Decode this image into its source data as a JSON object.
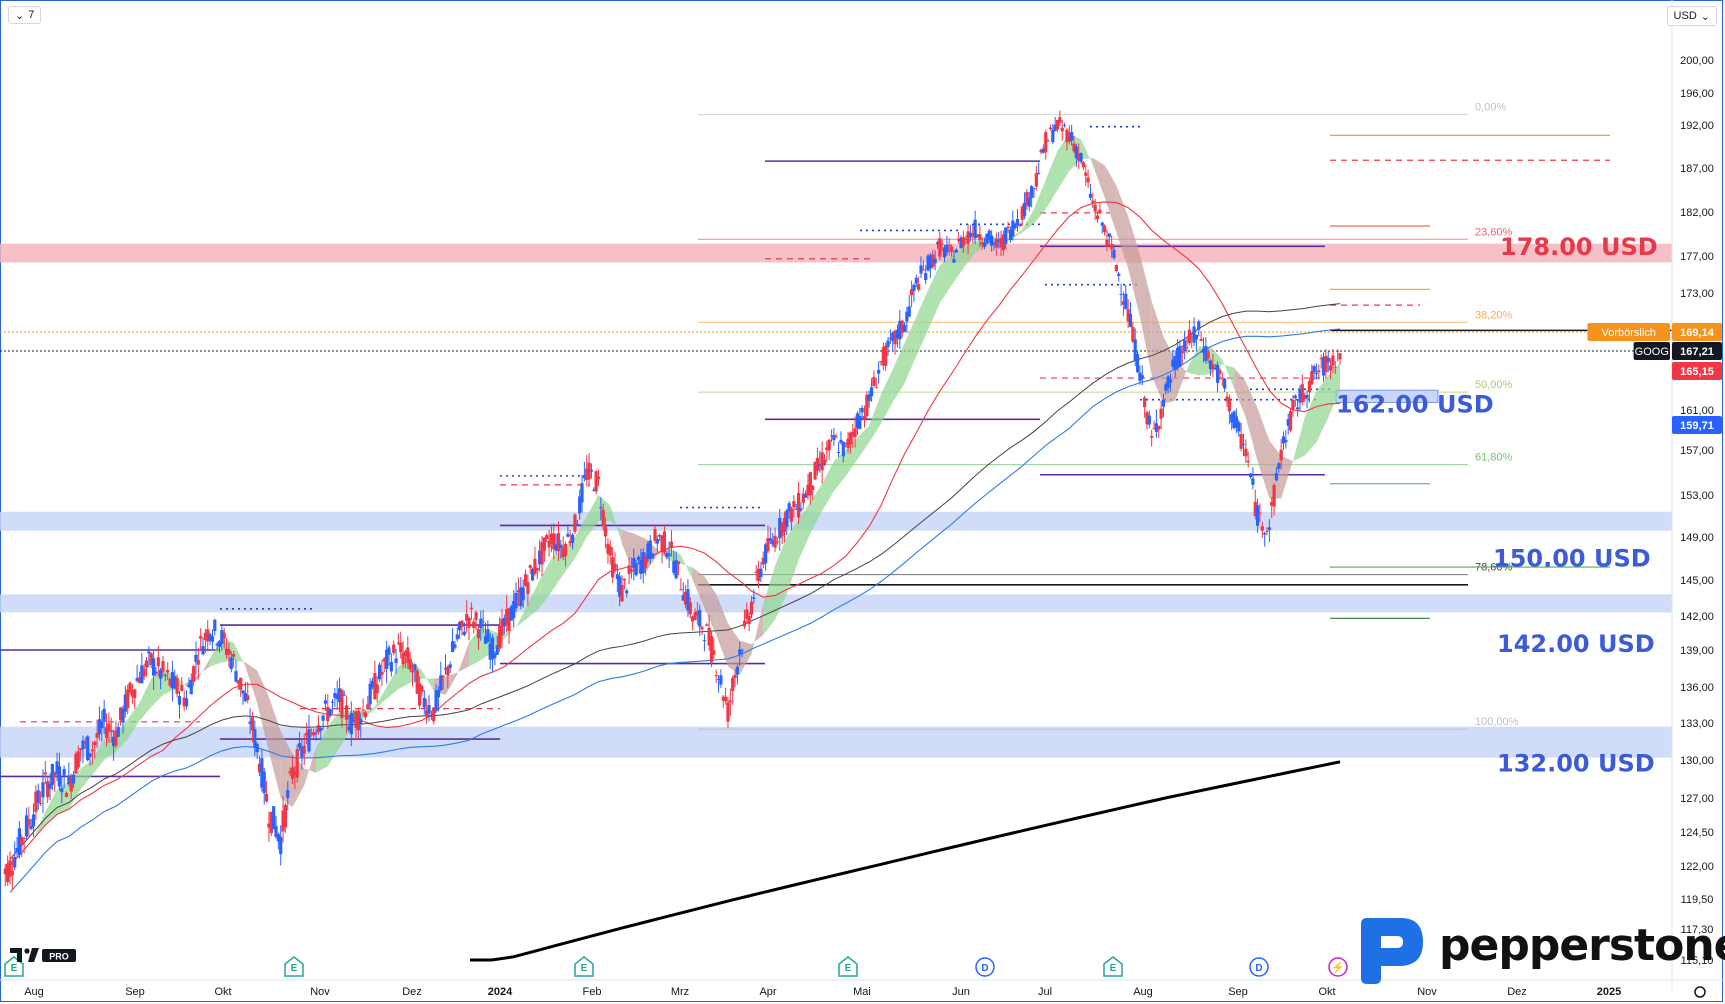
{
  "toolbar": {
    "interval": "7",
    "currency": "USD"
  },
  "brand": {
    "name": "pepperstone",
    "tv_badge": "PRO"
  },
  "price_axis": {
    "ticks": [
      "200,00",
      "196,00",
      "192,00",
      "187,00",
      "182,00",
      "177,00",
      "173,00",
      "169,14",
      "167,21",
      "165,15",
      "161,00",
      "159,71",
      "157,00",
      "153,00",
      "149,00",
      "145,00",
      "142,00",
      "139,00",
      "136,00",
      "133,00",
      "130,00",
      "127,00",
      "124,50",
      "122,00",
      "119,50",
      "117,30",
      "115,10"
    ]
  },
  "time_axis": {
    "labels": [
      "Aug",
      "Sep",
      "Okt",
      "Nov",
      "Dez",
      "2024",
      "Feb",
      "Mrz",
      "Apr",
      "Mai",
      "Jun",
      "Jul",
      "Aug",
      "Sep",
      "Okt",
      "Nov",
      "Dez",
      "2025"
    ]
  },
  "event_markers": [
    "E",
    "E",
    "E",
    "E",
    "D",
    "E",
    "D"
  ],
  "chart_data": {
    "type": "candlestick",
    "symbol": "GOOG",
    "last_price": 167.21,
    "price_labels": [
      {
        "label": "Vorbörslich",
        "value": 169.14,
        "color": "#f7931a"
      },
      {
        "label": "GOOG",
        "value": 167.21,
        "color": "#131722"
      },
      {
        "label": "",
        "value": 165.15,
        "color": "#f23645"
      },
      {
        "label": "",
        "value": 159.71,
        "color": "#2962ff"
      }
    ],
    "fibonacci": [
      {
        "level": "0,00%",
        "price": 193.3
      },
      {
        "level": "23,60%",
        "price": 178.9
      },
      {
        "level": "38,20%",
        "price": 170.1
      },
      {
        "level": "50,00%",
        "price": 162.9
      },
      {
        "level": "61,80%",
        "price": 155.7
      },
      {
        "level": "78,60%",
        "price": 145.5
      },
      {
        "level": "100,00%",
        "price": 132.5
      }
    ],
    "key_levels": [
      {
        "label": "178.00 USD",
        "price": 178,
        "color": "#e8394b"
      },
      {
        "label": "162.00 USD",
        "price": 162,
        "color": "#3b5bdb"
      },
      {
        "label": "150.00 USD",
        "price": 150,
        "color": "#3b5bdb"
      },
      {
        "label": "142.00 USD",
        "price": 142,
        "color": "#3b5bdb"
      },
      {
        "label": "132.00 USD",
        "price": 132,
        "color": "#3b5bdb"
      }
    ],
    "zones": [
      {
        "from": 176.3,
        "to": 178.4,
        "color": "#f4b6bc"
      },
      {
        "from": 149.6,
        "to": 151.4,
        "color": "#c9d6f7"
      },
      {
        "from": 142.3,
        "to": 143.8,
        "color": "#c9d6f7"
      },
      {
        "from": 130.2,
        "to": 132.7,
        "color": "#c9d6f7"
      }
    ],
    "weekly_closes": [
      122,
      124,
      126,
      128,
      129,
      128,
      131,
      131,
      133,
      132,
      135,
      137,
      138,
      137,
      136,
      135,
      139,
      141,
      140,
      138,
      135,
      131,
      126,
      124,
      129,
      131,
      133,
      134,
      135,
      133,
      134,
      136,
      138,
      139,
      138,
      135,
      134,
      137,
      140,
      142,
      141,
      139,
      141,
      143,
      145,
      147,
      149,
      148,
      150,
      155,
      154,
      147,
      144,
      146,
      147,
      149,
      148,
      145,
      142,
      141,
      138,
      134,
      139,
      143,
      147,
      149,
      151,
      152,
      154,
      156,
      158,
      157,
      160,
      162,
      166,
      168,
      170,
      174,
      176,
      178,
      177,
      179,
      180,
      179,
      178,
      180,
      182,
      185,
      190,
      192,
      191,
      188,
      183,
      180,
      176,
      171,
      165,
      158,
      162,
      166,
      168,
      169,
      166,
      164,
      160,
      157,
      151,
      150,
      157,
      161,
      163,
      165,
      166,
      167
    ]
  }
}
